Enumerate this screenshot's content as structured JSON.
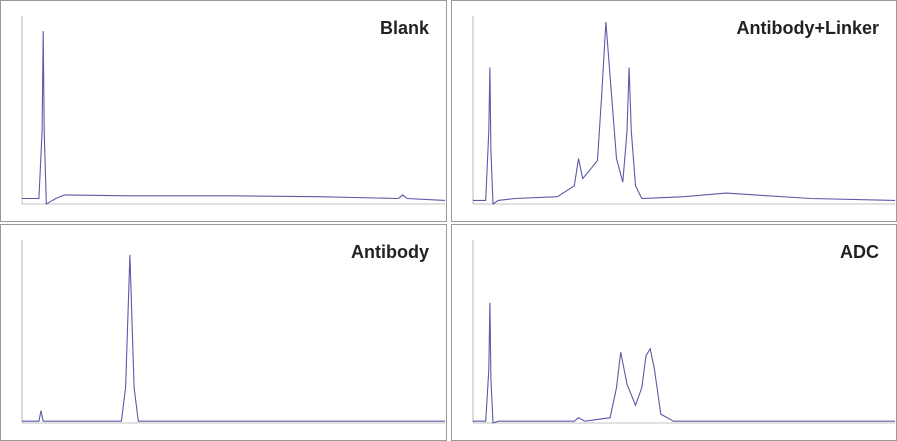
{
  "chart_data": [
    {
      "type": "line",
      "title": "Blank",
      "color": "#5a5aa8",
      "xlim": [
        0,
        20
      ],
      "ylim": [
        0,
        100
      ],
      "x": [
        0,
        0.8,
        0.95,
        1.0,
        1.05,
        1.15,
        1.3,
        1.6,
        2,
        5,
        10,
        14,
        17.8,
        18,
        18.2,
        20
      ],
      "values": [
        3,
        3,
        40,
        95,
        40,
        0,
        1,
        3,
        5,
        4.5,
        4.5,
        4,
        3,
        5,
        3,
        2
      ]
    },
    {
      "type": "line",
      "title": "Antibody+Linker",
      "color": "#5a5aa8",
      "xlim": [
        0,
        20
      ],
      "ylim": [
        0,
        100
      ],
      "x": [
        0,
        0.6,
        0.75,
        0.8,
        0.85,
        0.95,
        1.2,
        2,
        4,
        4.8,
        5,
        5.2,
        5.5,
        5.9,
        6.1,
        6.3,
        6.5,
        6.8,
        7.1,
        7.3,
        7.4,
        7.5,
        7.7,
        8,
        10,
        12,
        16,
        20
      ],
      "values": [
        2,
        2,
        40,
        75,
        30,
        0,
        2,
        3,
        4,
        10,
        25,
        14,
        18,
        24,
        60,
        100,
        70,
        25,
        12,
        40,
        75,
        40,
        10,
        3,
        4,
        6,
        3,
        2
      ]
    },
    {
      "type": "line",
      "title": "Antibody",
      "color": "#5a5aa8",
      "xlim": [
        0,
        20
      ],
      "ylim": [
        0,
        100
      ],
      "x": [
        0,
        0.8,
        0.9,
        1,
        1.2,
        4.7,
        4.9,
        5.1,
        5.3,
        5.5,
        6,
        20
      ],
      "values": [
        1,
        1,
        7,
        1,
        1,
        1,
        20,
        95,
        20,
        1,
        1,
        1
      ]
    },
    {
      "type": "line",
      "title": "ADC",
      "color": "#5a5aa8",
      "xlim": [
        0,
        20
      ],
      "ylim": [
        0,
        100
      ],
      "x": [
        0,
        0.6,
        0.75,
        0.8,
        0.85,
        0.95,
        1.2,
        4.8,
        5,
        5.3,
        6.5,
        6.8,
        7,
        7.3,
        7.7,
        8,
        8.2,
        8.4,
        8.6,
        8.9,
        9.5,
        20
      ],
      "values": [
        1,
        1,
        30,
        68,
        25,
        0,
        1,
        1,
        3,
        1,
        3,
        20,
        40,
        22,
        10,
        20,
        38,
        42,
        30,
        5,
        1,
        1
      ]
    }
  ]
}
